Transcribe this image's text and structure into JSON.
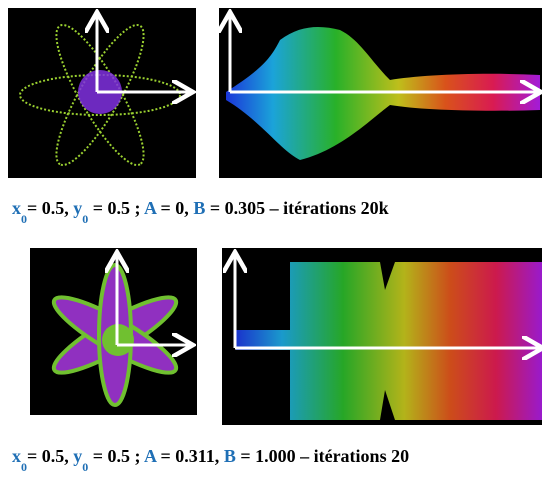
{
  "captions": [
    {
      "segments": [
        {
          "text": "x",
          "color": "#1f6fb5"
        },
        {
          "text": "0",
          "color": "#1f6fb5",
          "sub": true
        },
        {
          "text": "= 0.5, ",
          "color": "#000000"
        },
        {
          "text": "y",
          "color": "#1f6fb5"
        },
        {
          "text": "0",
          "color": "#1f6fb5",
          "sub": true
        },
        {
          "text": " = 0.5 ;  ",
          "color": "#000000"
        },
        {
          "text": "A",
          "color": "#1f6fb5"
        },
        {
          "text": " = 0, ",
          "color": "#000000"
        },
        {
          "text": "B",
          "color": "#1f6fb5"
        },
        {
          "text": " = 0.305 – itérations 20k",
          "color": "#000000"
        }
      ]
    },
    {
      "segments": [
        {
          "text": "x",
          "color": "#1f6fb5"
        },
        {
          "text": "0",
          "color": "#1f6fb5",
          "sub": true
        },
        {
          "text": "= 0.5, ",
          "color": "#000000"
        },
        {
          "text": "y",
          "color": "#1f6fb5"
        },
        {
          "text": "0",
          "color": "#1f6fb5",
          "sub": true
        },
        {
          "text": " = 0.5 ;  ",
          "color": "#000000"
        },
        {
          "text": "A",
          "color": "#1f6fb5"
        },
        {
          "text": " = 0.311, ",
          "color": "#000000"
        },
        {
          "text": "B",
          "color": "#1f6fb5"
        },
        {
          "text": " = 1.000 – itérations 20",
          "color": "#000000"
        }
      ]
    }
  ]
}
